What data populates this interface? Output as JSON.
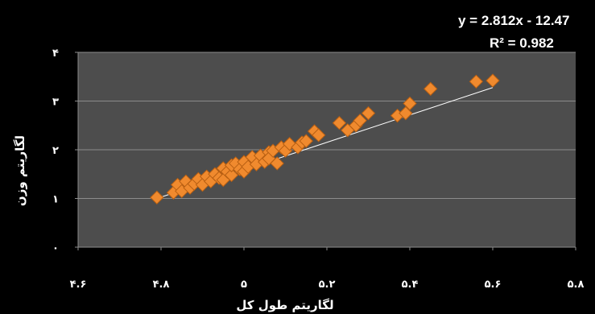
{
  "chart_data": {
    "type": "scatter",
    "title": "",
    "xlabel": "لگاریتم طول کل",
    "ylabel": "لگاریتم وزن",
    "xlim": [
      4.6,
      5.8
    ],
    "ylim": [
      0,
      4
    ],
    "x_ticks": [
      4.6,
      4.8,
      5.0,
      5.2,
      5.4,
      5.6,
      5.8
    ],
    "x_tick_labels": [
      "۴.۶",
      "۴.۸",
      "۵",
      "۵.۲",
      "۵.۴",
      "۵.۶",
      "۵.۸"
    ],
    "y_ticks": [
      0,
      1,
      2,
      3,
      4
    ],
    "y_tick_labels": [
      "۰",
      "۱",
      "۲",
      "۳",
      "۴"
    ],
    "grid": "horizontal",
    "legend": "none",
    "colors": {
      "background": "#000000",
      "plot_area": "#4d4d4d",
      "gridline": "#8c8c8c",
      "marker": "#f08a2e",
      "marker_edge": "#b85f12",
      "trendline": "#ffffff",
      "text": "#ffffff"
    },
    "trendline": {
      "type": "linear",
      "slope": 2.812,
      "intercept": -12.47,
      "equation_label": "y = 2.812x - 12.47",
      "r2_label": "R² = 0.982"
    },
    "series": [
      {
        "marker": "diamond",
        "x": [
          4.79,
          4.83,
          4.84,
          4.85,
          4.86,
          4.87,
          4.88,
          4.89,
          4.9,
          4.91,
          4.92,
          4.93,
          4.94,
          4.95,
          4.95,
          4.96,
          4.97,
          4.97,
          4.98,
          4.99,
          5.0,
          5.0,
          5.01,
          5.02,
          5.03,
          5.04,
          5.05,
          5.06,
          5.06,
          5.07,
          5.08,
          5.09,
          5.1,
          5.11,
          5.13,
          5.14,
          5.15,
          5.17,
          5.18,
          5.23,
          5.25,
          5.27,
          5.28,
          5.3,
          5.37,
          5.39,
          5.4,
          5.45,
          5.56,
          5.6
        ],
        "y": [
          1.02,
          1.12,
          1.28,
          1.15,
          1.35,
          1.22,
          1.3,
          1.4,
          1.28,
          1.45,
          1.35,
          1.5,
          1.42,
          1.62,
          1.38,
          1.55,
          1.48,
          1.68,
          1.72,
          1.6,
          1.55,
          1.75,
          1.65,
          1.85,
          1.7,
          1.88,
          1.75,
          1.95,
          1.82,
          1.98,
          1.72,
          2.05,
          1.98,
          2.12,
          2.05,
          2.15,
          2.18,
          2.38,
          2.3,
          2.55,
          2.4,
          2.5,
          2.6,
          2.75,
          2.7,
          2.75,
          2.95,
          3.25,
          3.4,
          3.42
        ]
      }
    ]
  }
}
